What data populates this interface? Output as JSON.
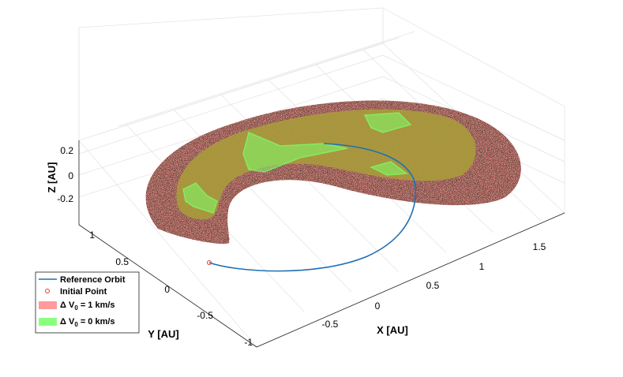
{
  "chart_data": {
    "type": "scatter",
    "projection": "3d",
    "title": "",
    "xlabel": "X [AU]",
    "ylabel": "Y [AU]",
    "zlabel": "Z [AU]",
    "xlim": [
      -1,
      2
    ],
    "ylim": [
      -1,
      1.2
    ],
    "zlim": [
      -0.3,
      0.3
    ],
    "x_ticks": [
      "-0.5",
      "0",
      "0.5",
      "1",
      "1.5"
    ],
    "y_ticks": [
      "-1",
      "-0.5",
      "0",
      "0.5",
      "1"
    ],
    "z_ticks": [
      "-0.2",
      "0",
      "0.2"
    ],
    "grid": true,
    "legend_placement": "bottom-left",
    "legend": [
      {
        "label": "Reference Orbit",
        "symbol": "line"
      },
      {
        "label": "Initial Point",
        "symbol": "marker"
      },
      {
        "label_prefix": "Δ V",
        "label_sub": "0",
        "label_suffix": " = 1 km/s",
        "symbol": "patch"
      },
      {
        "label_prefix": "Δ V",
        "label_sub": "0",
        "label_suffix": " = 0 km/s",
        "symbol": "patch"
      }
    ],
    "series": [
      {
        "name": "Reference Orbit",
        "kind": "line",
        "color": "#1f6fb5",
        "points": [
          [
            -0.82,
            -0.75,
            0.0
          ],
          [
            -0.4,
            -0.8,
            0.0
          ],
          [
            0.1,
            -0.6,
            0.0
          ],
          [
            0.55,
            -0.25,
            0.0
          ],
          [
            0.8,
            0.2,
            0.0
          ],
          [
            0.65,
            0.7,
            0.0
          ],
          [
            0.05,
            0.95,
            0.0
          ]
        ]
      },
      {
        "name": "Initial Point",
        "kind": "marker",
        "color": "#e03b2a",
        "x": -0.82,
        "y": -0.75,
        "z": 0.0
      },
      {
        "name": "Δ V0 = 1 km/s",
        "kind": "region",
        "color": "#ff8c8c"
      },
      {
        "name": "Δ V0 = 0 km/s",
        "kind": "region",
        "color": "#7dff6a"
      }
    ]
  },
  "colors": {
    "orbit": "#1f6fb5",
    "initial_point": "#e03b2a",
    "dv1_fill": "#ff8c8c",
    "dv0_fill": "#7dff6a",
    "olive_overlap": "#a99a3c",
    "scatter_dots": "#1a0f0a"
  }
}
